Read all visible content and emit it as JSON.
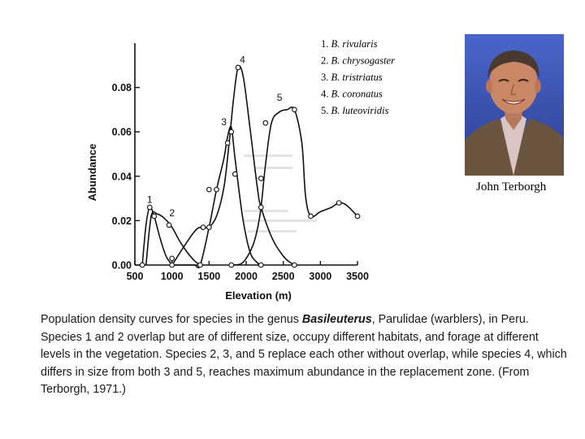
{
  "chart_data": {
    "type": "line",
    "xlabel": "Elevation (m)",
    "ylabel": "Abundance",
    "xlim": [
      500,
      3500
    ],
    "ylim": [
      0,
      0.1
    ],
    "x_ticks": [
      "500",
      "1000",
      "1500",
      "2000",
      "2500",
      "3000",
      "3500"
    ],
    "y_ticks": [
      "0.00",
      "0.02",
      "0.04",
      "0.06",
      "0.08"
    ],
    "series": [
      {
        "id": "1",
        "name": "B. rivularis",
        "label_at": [
          700,
          0.028
        ],
        "x": [
          600,
          650,
          700,
          760,
          840,
          920,
          980,
          1000
        ],
        "y": [
          0.0,
          0.018,
          0.026,
          0.022,
          0.012,
          0.004,
          0.001,
          0.0
        ]
      },
      {
        "id": "2",
        "name": "B. chrysogaster",
        "label_at": [
          1000,
          0.022
        ],
        "x": [
          650,
          720,
          800,
          900,
          1000,
          1100,
          1200,
          1300,
          1380
        ],
        "y": [
          0.0,
          0.022,
          0.023,
          0.021,
          0.017,
          0.011,
          0.006,
          0.002,
          0.0
        ]
      },
      {
        "id": "3",
        "name": "B. tristriatus",
        "label_at": [
          1700,
          0.063
        ],
        "x": [
          1000,
          1150,
          1300,
          1380,
          1500,
          1600,
          1700,
          1750,
          1800,
          1850,
          1950,
          2050,
          2150,
          2200
        ],
        "y": [
          0.0,
          0.0,
          0.0,
          0.0,
          0.017,
          0.034,
          0.048,
          0.058,
          0.062,
          0.048,
          0.022,
          0.006,
          0.001,
          0.0
        ]
      },
      {
        "id": "4",
        "name": "B. coronatus",
        "label_at": [
          1950,
          0.091
        ],
        "x": [
          1000,
          1300,
          1420,
          1500,
          1600,
          1700,
          1770,
          1830,
          1890,
          1960,
          2050,
          2150,
          2200,
          2350,
          2500,
          2600,
          2650
        ],
        "y": [
          0.0,
          0.015,
          0.017,
          0.017,
          0.022,
          0.035,
          0.055,
          0.075,
          0.089,
          0.085,
          0.062,
          0.035,
          0.026,
          0.012,
          0.004,
          0.001,
          0.0
        ]
      },
      {
        "id": "5",
        "name": "B. luteoviridis",
        "label_at": [
          2450,
          0.074
        ],
        "x": [
          1800,
          1950,
          2080,
          2150,
          2200,
          2260,
          2340,
          2450,
          2550,
          2650,
          2750,
          2800,
          2870,
          3000,
          3150,
          3250,
          3350,
          3500
        ],
        "y": [
          0.0,
          0.001,
          0.008,
          0.016,
          0.026,
          0.045,
          0.064,
          0.069,
          0.07,
          0.07,
          0.055,
          0.031,
          0.022,
          0.024,
          0.026,
          0.028,
          0.027,
          0.022
        ]
      }
    ],
    "markers": [
      {
        "x": 700,
        "y": 0.026
      },
      {
        "x": 760,
        "y": 0.022
      },
      {
        "x": 600,
        "y": 0.0
      },
      {
        "x": 960,
        "y": 0.018
      },
      {
        "x": 1000,
        "y": 0.003
      },
      {
        "x": 1000,
        "y": 0.0
      },
      {
        "x": 1380,
        "y": 0.0
      },
      {
        "x": 1420,
        "y": 0.017
      },
      {
        "x": 1500,
        "y": 0.017
      },
      {
        "x": 1500,
        "y": 0.034
      },
      {
        "x": 1600,
        "y": 0.034
      },
      {
        "x": 1750,
        "y": 0.055
      },
      {
        "x": 1800,
        "y": 0.06
      },
      {
        "x": 1850,
        "y": 0.041
      },
      {
        "x": 1890,
        "y": 0.089
      },
      {
        "x": 1800,
        "y": 0.0
      },
      {
        "x": 2200,
        "y": 0.039
      },
      {
        "x": 2200,
        "y": 0.026
      },
      {
        "x": 2200,
        "y": 0.0
      },
      {
        "x": 2260,
        "y": 0.064
      },
      {
        "x": 2650,
        "y": 0.07
      },
      {
        "x": 2650,
        "y": 0.0
      },
      {
        "x": 2870,
        "y": 0.022
      },
      {
        "x": 3250,
        "y": 0.028
      },
      {
        "x": 3500,
        "y": 0.022
      }
    ]
  },
  "legend": [
    {
      "num": "1.",
      "genus": "B.",
      "species": "rivularis"
    },
    {
      "num": "2.",
      "genus": "B.",
      "species": "chrysogaster"
    },
    {
      "num": "3.",
      "genus": "B.",
      "species": "tristriatus"
    },
    {
      "num": "4.",
      "genus": "B.",
      "species": "coronatus"
    },
    {
      "num": "5.",
      "genus": "B.",
      "species": "luteoviridis"
    }
  ],
  "photo": {
    "caption": "John Terborgh"
  },
  "caption": {
    "part1": "Population density curves for species in the genus ",
    "genus": "Basileuterus",
    "part2": ", Parulidae (warblers), in Peru. Species 1 and 2 overlap but are of different size, occupy different habitats, and forage at different levels in the vegetation. Species 2, 3, and 5 replace each other without overlap, while species 4, which differs in size from both 3 and 5, reaches maximum abundance in the replacement zone. (From Terborgh, 1971.)"
  },
  "colors": {
    "ink": "#111111",
    "background": "#ffffff"
  }
}
